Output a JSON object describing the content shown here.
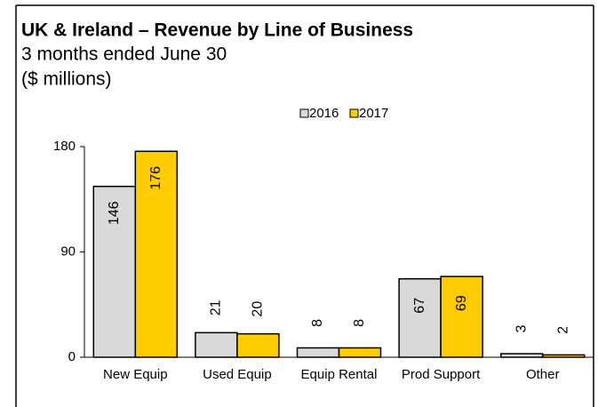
{
  "chart_data": {
    "type": "bar",
    "title": "UK & Ireland – Revenue by Line of Business",
    "subtitle": [
      "3 months ended June 30",
      "($ millions)"
    ],
    "categories": [
      "New Equip",
      "Used Equip",
      "Equip Rental",
      "Prod Support",
      "Other"
    ],
    "series": [
      {
        "name": "2016",
        "color": "#d9d9d9",
        "values": [
          146,
          21,
          8,
          67,
          3
        ]
      },
      {
        "name": "2017",
        "color": "#ffcc00",
        "values": [
          176,
          20,
          8,
          69,
          2
        ]
      }
    ],
    "ylim": [
      0,
      180
    ],
    "yticks": [
      0,
      90,
      180
    ],
    "legend": "top"
  }
}
